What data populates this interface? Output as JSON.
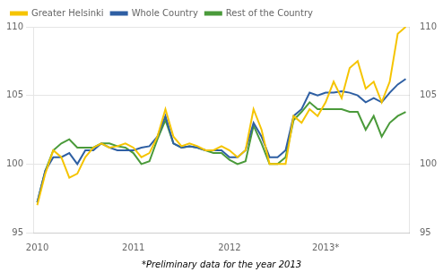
{
  "chart_data": {
    "type": "line",
    "annotations": [
      "*Preliminary data for the year 2013"
    ],
    "categories": [
      "2010",
      null,
      null,
      null,
      null,
      null,
      null,
      null,
      null,
      null,
      null,
      null,
      "2011",
      null,
      null,
      null,
      null,
      null,
      null,
      null,
      null,
      null,
      null,
      null,
      "2012",
      null,
      null,
      null,
      null,
      null,
      null,
      null,
      null,
      null,
      null,
      null,
      "2013*",
      null,
      null,
      null,
      null,
      null,
      null,
      null,
      null,
      null,
      null
    ],
    "series": [
      {
        "name": "Greater Helsinki",
        "color": "#F5C400",
        "values": [
          97.0,
          99.3,
          101.0,
          100.5,
          99.0,
          99.3,
          100.5,
          101.2,
          101.5,
          101.2,
          101.3,
          101.5,
          101.2,
          100.5,
          100.8,
          102.0,
          104.0,
          102.0,
          101.3,
          101.5,
          101.3,
          101.0,
          101.0,
          101.3,
          101.0,
          100.5,
          101.0,
          104.0,
          102.5,
          100.0,
          100.0,
          100.0,
          103.5,
          103.0,
          104.0,
          103.5,
          104.5,
          106.0,
          104.8,
          107.0,
          107.5,
          105.5,
          106.0,
          104.5,
          106.0,
          109.5,
          110.0
        ]
      },
      {
        "name": "Whole Country",
        "color": "#2E5FA3",
        "values": [
          97.2,
          99.5,
          100.5,
          100.5,
          100.8,
          100.0,
          101.0,
          101.0,
          101.5,
          101.2,
          101.0,
          101.0,
          101.0,
          101.2,
          101.3,
          102.0,
          103.5,
          101.5,
          101.2,
          101.3,
          101.2,
          101.0,
          101.0,
          101.0,
          100.5,
          100.5,
          101.0,
          103.0,
          102.0,
          100.5,
          100.5,
          101.0,
          103.5,
          104.0,
          105.2,
          105.0,
          105.2,
          105.2,
          105.3,
          105.2,
          105.0,
          104.5,
          104.8,
          104.5,
          105.2,
          105.8,
          106.2
        ]
      },
      {
        "name": "Rest of the Country",
        "color": "#4A9A3A",
        "values": [
          97.2,
          99.5,
          101.0,
          101.5,
          101.8,
          101.2,
          101.2,
          101.2,
          101.5,
          101.5,
          101.3,
          101.2,
          100.8,
          100.0,
          100.2,
          101.8,
          103.2,
          101.5,
          101.2,
          101.3,
          101.2,
          101.0,
          100.8,
          100.8,
          100.3,
          100.0,
          100.2,
          102.8,
          101.5,
          100.0,
          100.0,
          100.5,
          103.2,
          103.8,
          104.5,
          104.0,
          104.0,
          104.0,
          104.0,
          103.8,
          103.8,
          102.5,
          103.5,
          102.0,
          103.0,
          103.5,
          103.8
        ]
      }
    ],
    "ylim": [
      95,
      110
    ],
    "yticks": [
      95,
      100,
      105,
      110
    ],
    "y2lim": [
      95,
      110
    ],
    "y2ticks": [
      95,
      100,
      105,
      110
    ],
    "grid": true,
    "legend": "upper left"
  }
}
